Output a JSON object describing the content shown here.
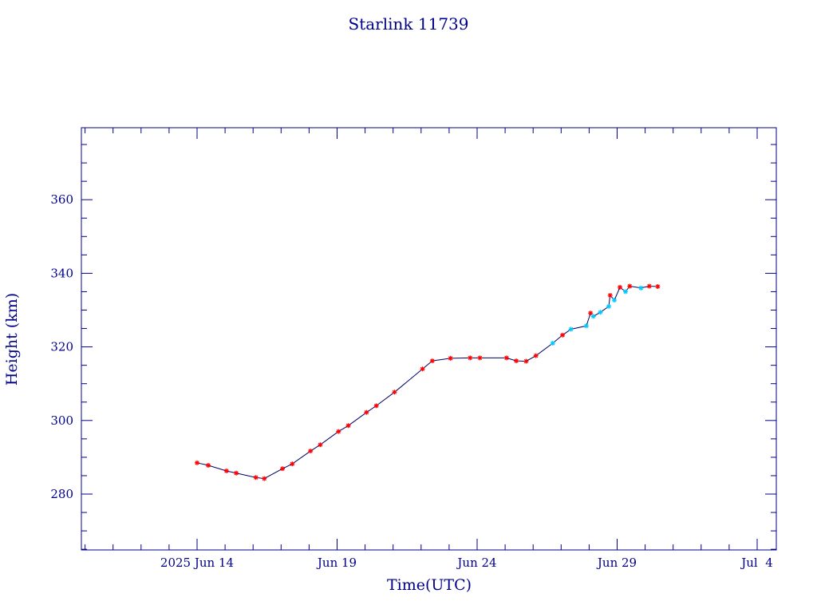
{
  "chart_data": {
    "type": "scatter",
    "title": "Starlink 11739",
    "xlabel": "Time(UTC)",
    "ylabel": "Height (km)",
    "x_origin_label": "2025 Jun 14",
    "xlim_days_from_jun14": [
      -4,
      21
    ],
    "ylim": [
      265,
      380
    ],
    "x_ticks": [
      {
        "label": "2025 Jun 14",
        "day": 0
      },
      {
        "label": "Jun 19",
        "day": 5
      },
      {
        "label": "Jun 24",
        "day": 10
      },
      {
        "label": "Jun 29",
        "day": 15
      },
      {
        "label": "Jul  4",
        "day": 20
      }
    ],
    "y_ticks": [
      280,
      300,
      320,
      340,
      360
    ],
    "grid": false,
    "colors": {
      "axes": "#00008b",
      "line": "#000066",
      "marker_primary": "#ff0000",
      "marker_secondary": "#00c8ff"
    },
    "series": [
      {
        "values": [
          {
            "x": 0.0,
            "y": 288.5,
            "m": "red"
          },
          {
            "x": 0.4,
            "y": 287.8,
            "m": "red"
          },
          {
            "x": 1.05,
            "y": 286.3,
            "m": "red"
          },
          {
            "x": 1.4,
            "y": 285.7,
            "m": "red"
          },
          {
            "x": 2.1,
            "y": 284.5,
            "m": "red"
          },
          {
            "x": 2.4,
            "y": 284.2,
            "m": "red"
          },
          {
            "x": 3.05,
            "y": 286.9,
            "m": "red"
          },
          {
            "x": 3.4,
            "y": 288.2,
            "m": "red"
          },
          {
            "x": 4.05,
            "y": 291.7,
            "m": "red"
          },
          {
            "x": 4.4,
            "y": 293.4,
            "m": "red"
          },
          {
            "x": 5.05,
            "y": 297.0,
            "m": "red"
          },
          {
            "x": 5.4,
            "y": 298.6,
            "m": "red"
          },
          {
            "x": 6.05,
            "y": 302.2,
            "m": "red"
          },
          {
            "x": 6.4,
            "y": 304.0,
            "m": "red"
          },
          {
            "x": 7.05,
            "y": 307.7,
            "m": "red"
          },
          {
            "x": 8.05,
            "y": 314.0,
            "m": "red"
          },
          {
            "x": 8.4,
            "y": 316.2,
            "m": "red"
          },
          {
            "x": 9.05,
            "y": 316.9,
            "m": "red"
          },
          {
            "x": 9.75,
            "y": 317.0,
            "m": "red"
          },
          {
            "x": 10.1,
            "y": 317.0,
            "m": "red"
          },
          {
            "x": 11.05,
            "y": 317.0,
            "m": "red"
          },
          {
            "x": 11.4,
            "y": 316.2,
            "m": "red"
          },
          {
            "x": 11.75,
            "y": 316.1,
            "m": "red"
          },
          {
            "x": 12.1,
            "y": 317.6,
            "m": "red"
          },
          {
            "x": 12.7,
            "y": 321.0,
            "m": "cyan"
          },
          {
            "x": 13.05,
            "y": 323.2,
            "m": "red"
          },
          {
            "x": 13.35,
            "y": 324.8,
            "m": "cyan"
          },
          {
            "x": 13.9,
            "y": 325.7,
            "m": "cyan"
          },
          {
            "x": 14.05,
            "y": 329.2,
            "m": "red"
          },
          {
            "x": 14.15,
            "y": 328.3,
            "m": "cyan"
          },
          {
            "x": 14.4,
            "y": 329.4,
            "m": "cyan"
          },
          {
            "x": 14.7,
            "y": 331.0,
            "m": "cyan"
          },
          {
            "x": 14.75,
            "y": 334.0,
            "m": "red"
          },
          {
            "x": 14.9,
            "y": 332.7,
            "m": "cyan"
          },
          {
            "x": 15.1,
            "y": 336.2,
            "m": "red"
          },
          {
            "x": 15.3,
            "y": 335.0,
            "m": "cyan"
          },
          {
            "x": 15.45,
            "y": 336.5,
            "m": "red"
          },
          {
            "x": 15.85,
            "y": 336.0,
            "m": "cyan"
          },
          {
            "x": 16.15,
            "y": 336.5,
            "m": "red"
          },
          {
            "x": 16.45,
            "y": 336.4,
            "m": "red"
          }
        ]
      }
    ]
  }
}
